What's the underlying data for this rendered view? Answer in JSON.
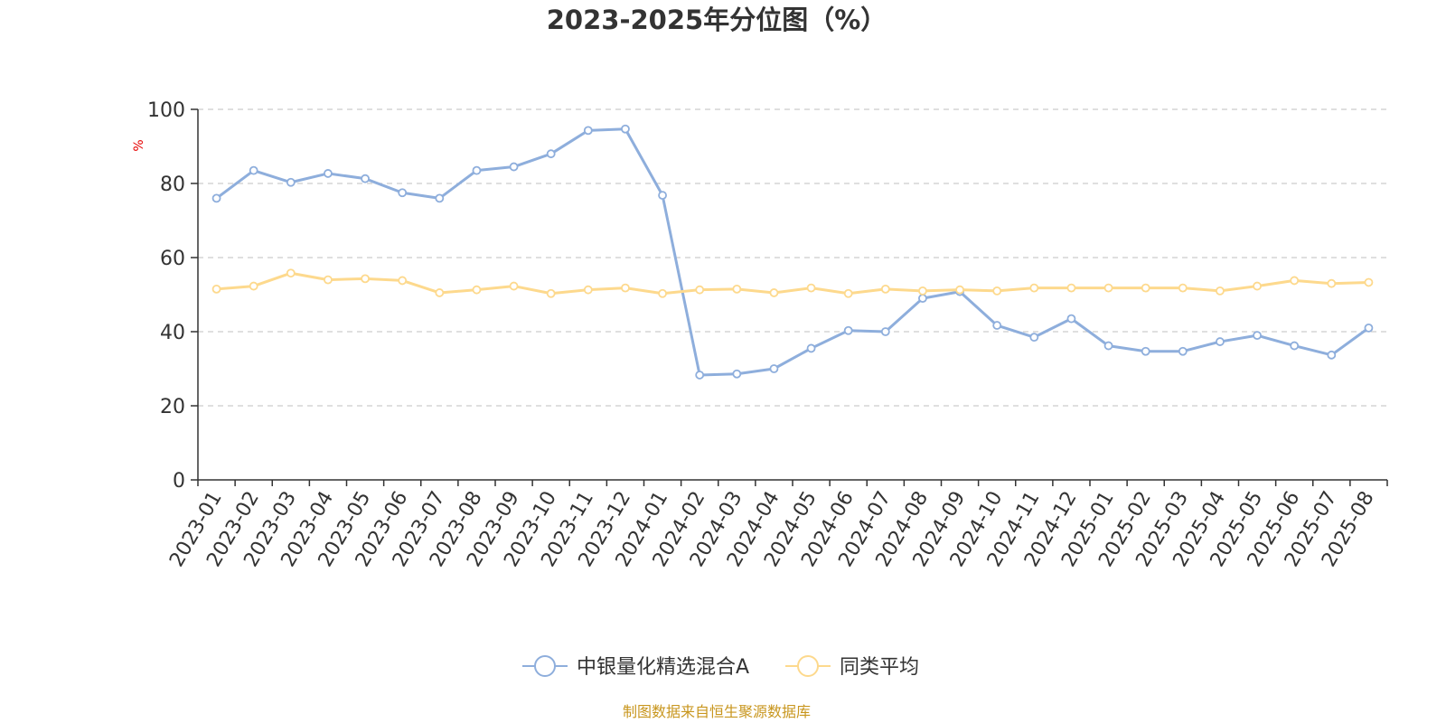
{
  "chart_data": {
    "type": "line",
    "title": "2023-2025年分位图（%）",
    "ylabel": "%",
    "xlabel": "",
    "ylim": [
      0,
      100
    ],
    "yticks": [
      0,
      20,
      40,
      60,
      80,
      100
    ],
    "grid": true,
    "legend_position": "bottom-center",
    "categories": [
      "2023-01",
      "2023-02",
      "2023-03",
      "2023-04",
      "2023-05",
      "2023-06",
      "2023-07",
      "2023-08",
      "2023-09",
      "2023-10",
      "2023-11",
      "2023-12",
      "2024-01",
      "2024-02",
      "2024-03",
      "2024-04",
      "2024-05",
      "2024-06",
      "2024-07",
      "2024-08",
      "2024-09",
      "2024-10",
      "2024-11",
      "2024-12",
      "2025-01",
      "2025-02",
      "2025-03",
      "2025-04",
      "2025-05",
      "2025-06",
      "2025-07",
      "2025-08"
    ],
    "series": [
      {
        "name": "中银量化精选混合A",
        "color": "#8eaedc",
        "values": [
          76.0,
          83.5,
          80.3,
          82.7,
          81.3,
          77.5,
          76.0,
          83.5,
          84.5,
          88.0,
          94.3,
          94.7,
          76.8,
          28.3,
          28.6,
          30.0,
          35.5,
          40.3,
          40.0,
          49.0,
          50.8,
          41.7,
          38.5,
          43.5,
          36.2,
          34.7,
          34.7,
          37.3,
          39.0,
          36.2,
          33.7,
          41.0
        ]
      },
      {
        "name": "同类平均",
        "color": "#fdd98d",
        "values": [
          51.5,
          52.3,
          55.8,
          54.0,
          54.3,
          53.8,
          50.5,
          51.3,
          52.3,
          50.3,
          51.3,
          51.8,
          50.3,
          51.3,
          51.5,
          50.5,
          51.8,
          50.3,
          51.5,
          51.0,
          51.3,
          51.0,
          51.8,
          51.8,
          51.8,
          51.8,
          51.8,
          51.0,
          52.3,
          53.8,
          53.0,
          53.3
        ]
      }
    ],
    "source": "制图数据来自恒生聚源数据库"
  }
}
